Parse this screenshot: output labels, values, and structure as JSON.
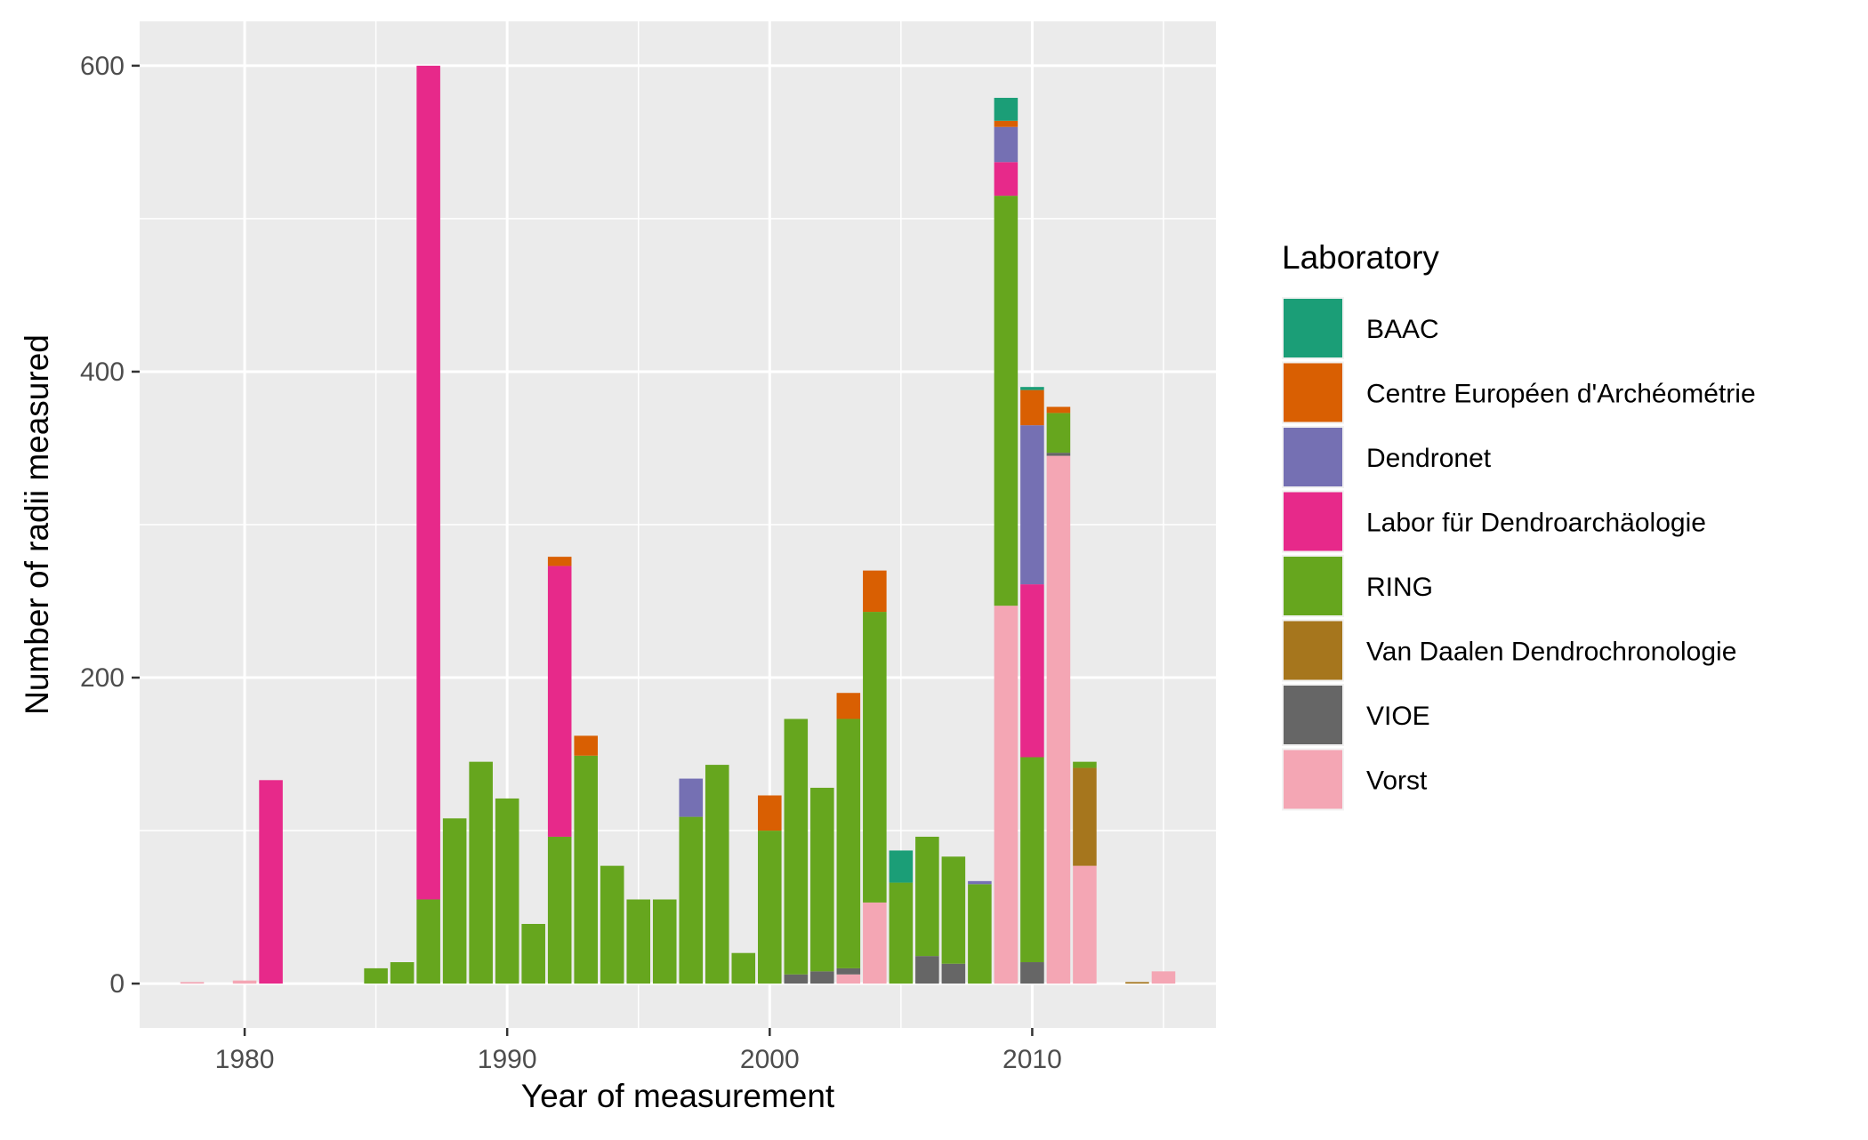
{
  "chart_data": {
    "type": "bar",
    "stacked": true,
    "xlabel": "Year of measurement",
    "ylabel": "Number of radii measured",
    "xlim": [
      1976,
      2017
    ],
    "ylim": [
      -29,
      629
    ],
    "x_ticks": [
      1980,
      1990,
      2000,
      2010
    ],
    "y_ticks": [
      0,
      200,
      400,
      600
    ],
    "grid": true,
    "legend": {
      "title": "Laboratory",
      "position": "right"
    },
    "series": [
      {
        "name": "BAAC",
        "color": "#1B9E77"
      },
      {
        "name": "Centre Européen d'Archéométrie",
        "color": "#D95F02"
      },
      {
        "name": "Dendronet",
        "color": "#7570B3"
      },
      {
        "name": "Labor für Dendroarchäologie",
        "color": "#E7298A"
      },
      {
        "name": "RING",
        "color": "#66A61E"
      },
      {
        "name": "Van Daalen Dendrochronologie",
        "color": "#A6761D"
      },
      {
        "name": "VIOE",
        "color": "#666666"
      },
      {
        "name": "Vorst",
        "color": "#F4A6B4"
      }
    ],
    "bars": [
      {
        "x": 1978,
        "values": {
          "Vorst": 1
        }
      },
      {
        "x": 1980,
        "values": {
          "Vorst": 2
        }
      },
      {
        "x": 1981,
        "values": {
          "Labor für Dendroarchäologie": 133
        }
      },
      {
        "x": 1985,
        "values": {
          "RING": 10
        }
      },
      {
        "x": 1986,
        "values": {
          "RING": 14
        }
      },
      {
        "x": 1987,
        "values": {
          "RING": 55,
          "Labor für Dendroarchäologie": 545
        }
      },
      {
        "x": 1988,
        "values": {
          "RING": 108
        }
      },
      {
        "x": 1989,
        "values": {
          "RING": 145
        }
      },
      {
        "x": 1990,
        "values": {
          "RING": 121
        }
      },
      {
        "x": 1991,
        "values": {
          "RING": 39
        }
      },
      {
        "x": 1992,
        "values": {
          "RING": 96,
          "Labor für Dendroarchäologie": 177,
          "Centre Européen d'Archéométrie": 6
        }
      },
      {
        "x": 1993,
        "values": {
          "RING": 149,
          "Centre Européen d'Archéométrie": 13
        }
      },
      {
        "x": 1994,
        "values": {
          "RING": 77
        }
      },
      {
        "x": 1995,
        "values": {
          "RING": 55
        }
      },
      {
        "x": 1996,
        "values": {
          "RING": 55
        }
      },
      {
        "x": 1997,
        "values": {
          "RING": 109,
          "Dendronet": 25
        }
      },
      {
        "x": 1998,
        "values": {
          "RING": 143
        }
      },
      {
        "x": 1999,
        "values": {
          "RING": 20
        }
      },
      {
        "x": 2000,
        "values": {
          "RING": 100,
          "Centre Européen d'Archéométrie": 23
        }
      },
      {
        "x": 2001,
        "values": {
          "VIOE": 6,
          "RING": 167
        }
      },
      {
        "x": 2002,
        "values": {
          "VIOE": 8,
          "RING": 120
        }
      },
      {
        "x": 2003,
        "values": {
          "Vorst": 6,
          "VIOE": 4,
          "RING": 163,
          "Centre Européen d'Archéométrie": 17
        }
      },
      {
        "x": 2004,
        "values": {
          "Vorst": 53,
          "RING": 190,
          "Centre Européen d'Archéométrie": 27
        }
      },
      {
        "x": 2005,
        "values": {
          "RING": 66,
          "BAAC": 21
        }
      },
      {
        "x": 2006,
        "values": {
          "VIOE": 18,
          "RING": 78
        }
      },
      {
        "x": 2007,
        "values": {
          "VIOE": 13,
          "RING": 70
        }
      },
      {
        "x": 2008,
        "values": {
          "RING": 65,
          "Dendronet": 2
        }
      },
      {
        "x": 2009,
        "values": {
          "Vorst": 247,
          "RING": 268,
          "Labor für Dendroarchäologie": 22,
          "Dendronet": 23,
          "Centre Européen d'Archéométrie": 4,
          "BAAC": 15
        }
      },
      {
        "x": 2010,
        "values": {
          "VIOE": 14,
          "RING": 134,
          "Labor für Dendroarchäologie": 113,
          "Dendronet": 104,
          "Centre Européen d'Archéométrie": 23,
          "BAAC": 2
        }
      },
      {
        "x": 2011,
        "values": {
          "Vorst": 345,
          "VIOE": 2,
          "RING": 26,
          "Centre Européen d'Archéométrie": 4
        }
      },
      {
        "x": 2012,
        "values": {
          "Vorst": 77,
          "Van Daalen Dendrochronologie": 64,
          "RING": 4
        }
      },
      {
        "x": 2014,
        "values": {
          "Van Daalen Dendrochronologie": 1
        }
      },
      {
        "x": 2015,
        "values": {
          "Vorst": 8
        }
      }
    ]
  }
}
